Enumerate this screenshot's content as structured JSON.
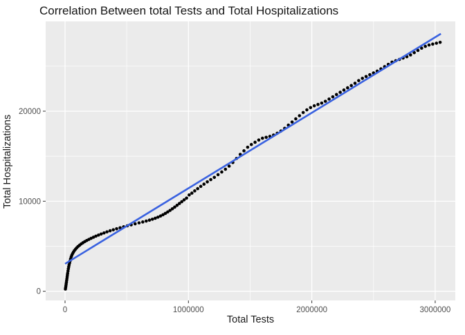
{
  "chart_data": {
    "type": "scatter",
    "title": "Correlation Between total Tests and Total Hospitalizations",
    "xlabel": "Total Tests",
    "ylabel": "Total Hospitalizations",
    "xlim": [
      -157000,
      3163000
    ],
    "ylim": [
      -1020,
      29970
    ],
    "x_ticks": [
      0,
      1000000,
      2000000,
      3000000
    ],
    "x_tick_labels": [
      "0",
      "1000000",
      "2000000",
      "3000000"
    ],
    "x_minor_ticks": [
      500000,
      1500000,
      2500000
    ],
    "y_ticks": [
      0,
      10000,
      20000
    ],
    "y_tick_labels": [
      "0",
      "10000",
      "20000"
    ],
    "y_minor_ticks": [
      5000,
      15000,
      25000
    ],
    "grid": true,
    "legend": false,
    "panel_bg": "#ebebeb",
    "grid_color": "#ffffff",
    "tick_mark_color": "#333333",
    "point_color": "#000000",
    "line_color": "#3a62e0",
    "series": [
      {
        "name": "observations",
        "type": "scatter",
        "color": "#000000",
        "points": [
          [
            3000,
            250
          ],
          [
            5000,
            420
          ],
          [
            7000,
            600
          ],
          [
            9000,
            800
          ],
          [
            11000,
            1000
          ],
          [
            13000,
            1200
          ],
          [
            15000,
            1400
          ],
          [
            17000,
            1600
          ],
          [
            19000,
            1800
          ],
          [
            21000,
            2000
          ],
          [
            24000,
            2250
          ],
          [
            27000,
            2500
          ],
          [
            30000,
            2720
          ],
          [
            33000,
            2940
          ],
          [
            37000,
            3160
          ],
          [
            41000,
            3380
          ],
          [
            45000,
            3600
          ],
          [
            50000,
            3820
          ],
          [
            55000,
            4000
          ],
          [
            61000,
            4180
          ],
          [
            68000,
            4350
          ],
          [
            76000,
            4520
          ],
          [
            85000,
            4680
          ],
          [
            95000,
            4830
          ],
          [
            106000,
            4980
          ],
          [
            118000,
            5120
          ],
          [
            131000,
            5260
          ],
          [
            145000,
            5390
          ],
          [
            160000,
            5520
          ],
          [
            176000,
            5640
          ],
          [
            193000,
            5760
          ],
          [
            211000,
            5880
          ],
          [
            230000,
            6000
          ],
          [
            250000,
            6120
          ],
          [
            271000,
            6240
          ],
          [
            293000,
            6360
          ],
          [
            316000,
            6480
          ],
          [
            340000,
            6600
          ],
          [
            365000,
            6720
          ],
          [
            391000,
            6830
          ],
          [
            418000,
            6940
          ],
          [
            446000,
            7050
          ],
          [
            475000,
            7160
          ],
          [
            505000,
            7270
          ],
          [
            536000,
            7380
          ],
          [
            568000,
            7490
          ],
          [
            600000,
            7600
          ],
          [
            630000,
            7700
          ],
          [
            658000,
            7800
          ],
          [
            684000,
            7900
          ],
          [
            708000,
            8000
          ],
          [
            731000,
            8110
          ],
          [
            753000,
            8230
          ],
          [
            774000,
            8360
          ],
          [
            794000,
            8500
          ],
          [
            813000,
            8650
          ],
          [
            832000,
            8810
          ],
          [
            851000,
            8980
          ],
          [
            870000,
            9160
          ],
          [
            889000,
            9350
          ],
          [
            908000,
            9550
          ],
          [
            927000,
            9750
          ],
          [
            946000,
            9950
          ],
          [
            965000,
            10150
          ],
          [
            985000,
            10350
          ],
          [
            1006000,
            10700
          ],
          [
            1028000,
            10900
          ],
          [
            1051000,
            11150
          ],
          [
            1075000,
            11400
          ],
          [
            1100000,
            11650
          ],
          [
            1126000,
            11900
          ],
          [
            1153000,
            12150
          ],
          [
            1181000,
            12400
          ],
          [
            1210000,
            12650
          ],
          [
            1240000,
            12950
          ],
          [
            1270000,
            13250
          ],
          [
            1300000,
            13550
          ],
          [
            1330000,
            13900
          ],
          [
            1360000,
            14300
          ],
          [
            1390000,
            14750
          ],
          [
            1420000,
            15200
          ],
          [
            1450000,
            15600
          ],
          [
            1480000,
            16000
          ],
          [
            1510000,
            16300
          ],
          [
            1540000,
            16550
          ],
          [
            1570000,
            16800
          ],
          [
            1600000,
            17000
          ],
          [
            1630000,
            17100
          ],
          [
            1660000,
            17200
          ],
          [
            1690000,
            17350
          ],
          [
            1720000,
            17550
          ],
          [
            1750000,
            17800
          ],
          [
            1780000,
            18100
          ],
          [
            1810000,
            18450
          ],
          [
            1840000,
            18800
          ],
          [
            1870000,
            19150
          ],
          [
            1900000,
            19500
          ],
          [
            1930000,
            19850
          ],
          [
            1960000,
            20150
          ],
          [
            1990000,
            20400
          ],
          [
            2020000,
            20600
          ],
          [
            2050000,
            20750
          ],
          [
            2080000,
            20900
          ],
          [
            2110000,
            21100
          ],
          [
            2140000,
            21350
          ],
          [
            2170000,
            21600
          ],
          [
            2200000,
            21850
          ],
          [
            2230000,
            22100
          ],
          [
            2260000,
            22350
          ],
          [
            2290000,
            22600
          ],
          [
            2320000,
            22850
          ],
          [
            2350000,
            23100
          ],
          [
            2380000,
            23400
          ],
          [
            2410000,
            23650
          ],
          [
            2440000,
            23850
          ],
          [
            2470000,
            24050
          ],
          [
            2500000,
            24250
          ],
          [
            2530000,
            24450
          ],
          [
            2560000,
            24700
          ],
          [
            2590000,
            24950
          ],
          [
            2620000,
            25200
          ],
          [
            2650000,
            25450
          ],
          [
            2680000,
            25600
          ],
          [
            2710000,
            25750
          ],
          [
            2740000,
            25900
          ],
          [
            2770000,
            26050
          ],
          [
            2800000,
            26250
          ],
          [
            2830000,
            26500
          ],
          [
            2860000,
            26750
          ],
          [
            2890000,
            27000
          ],
          [
            2920000,
            27200
          ],
          [
            2950000,
            27350
          ],
          [
            2980000,
            27450
          ],
          [
            3010000,
            27550
          ],
          [
            3040000,
            27650
          ]
        ]
      },
      {
        "name": "linear-fit",
        "type": "line",
        "color": "#3a62e0",
        "points": [
          [
            0,
            3050
          ],
          [
            3046000,
            28600
          ]
        ]
      }
    ]
  }
}
